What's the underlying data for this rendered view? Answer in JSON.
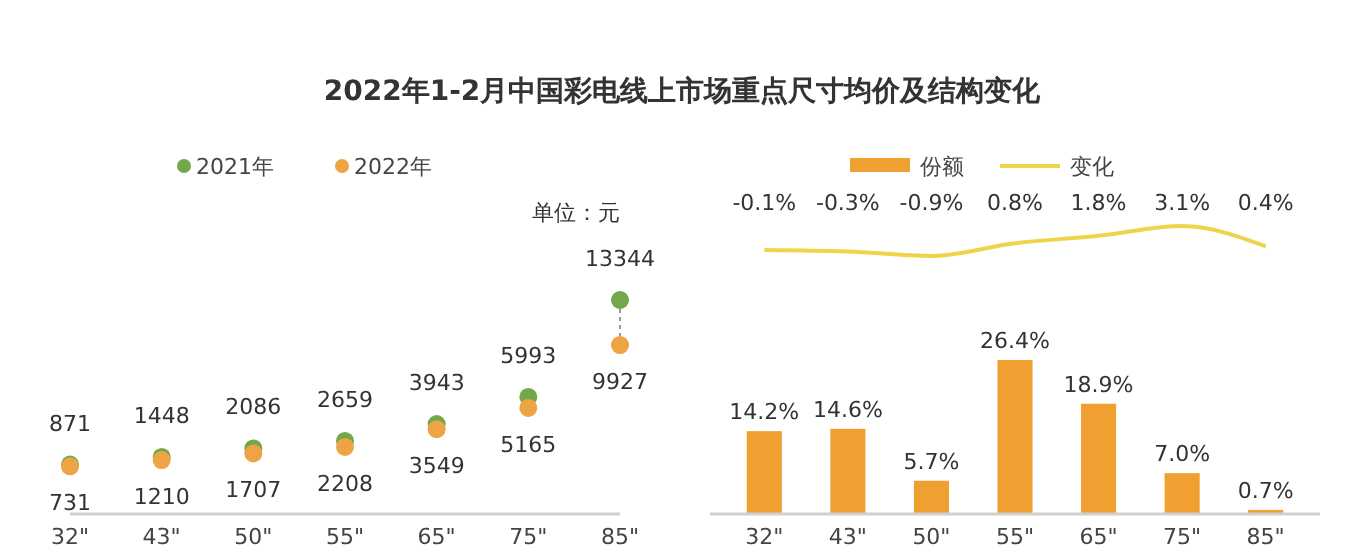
{
  "chart_data": [
    {
      "type": "scatter",
      "title": "2022年1-2月中国彩电线上市场重点尺寸均价及结构变化",
      "categories": [
        "32\"",
        "43\"",
        "50\"",
        "55\"",
        "65\"",
        "75\"",
        "85\""
      ],
      "series": [
        {
          "name": "2021年",
          "color": "#70a84a",
          "values": [
            871,
            1448,
            2086,
            2659,
            3943,
            5993,
            13344
          ]
        },
        {
          "name": "2022年",
          "color": "#eea444",
          "values": [
            731,
            1210,
            1707,
            2208,
            3549,
            5165,
            9927
          ]
        }
      ],
      "data_labels": true,
      "legend": "top",
      "tick_labels": "x",
      "annotations": [
        "单位：元"
      ]
    },
    {
      "type": "line",
      "categories": [
        null,
        null,
        null,
        null,
        null,
        null,
        null
      ],
      "series": [
        {
          "name": "变化",
          "color": "#eed44a",
          "values": [
            -0.1,
            -0.3,
            -0.9,
            0.8,
            1.8,
            3.1,
            0.4
          ],
          "value_labels": [
            "-0.1%",
            "-0.3%",
            "-0.9%",
            "0.8%",
            "1.8%",
            "3.1%",
            "0.4%"
          ]
        }
      ],
      "legend": "top",
      "tick_labels": false
    },
    {
      "type": "bar",
      "categories": [
        "32\"",
        "43\"",
        "50\"",
        "55\"",
        "65\"",
        "75\"",
        "85\""
      ],
      "series": [
        {
          "name": "份额",
          "color": "#f0a030",
          "values": [
            14.2,
            14.6,
            5.7,
            26.4,
            18.9,
            7.0,
            0.7
          ],
          "value_labels": [
            "14.2%",
            "14.6%",
            "5.7%",
            "26.4%",
            "18.9%",
            "7.0%",
            "0.7%"
          ]
        }
      ],
      "legend": "top",
      "tick_labels": "x"
    }
  ]
}
